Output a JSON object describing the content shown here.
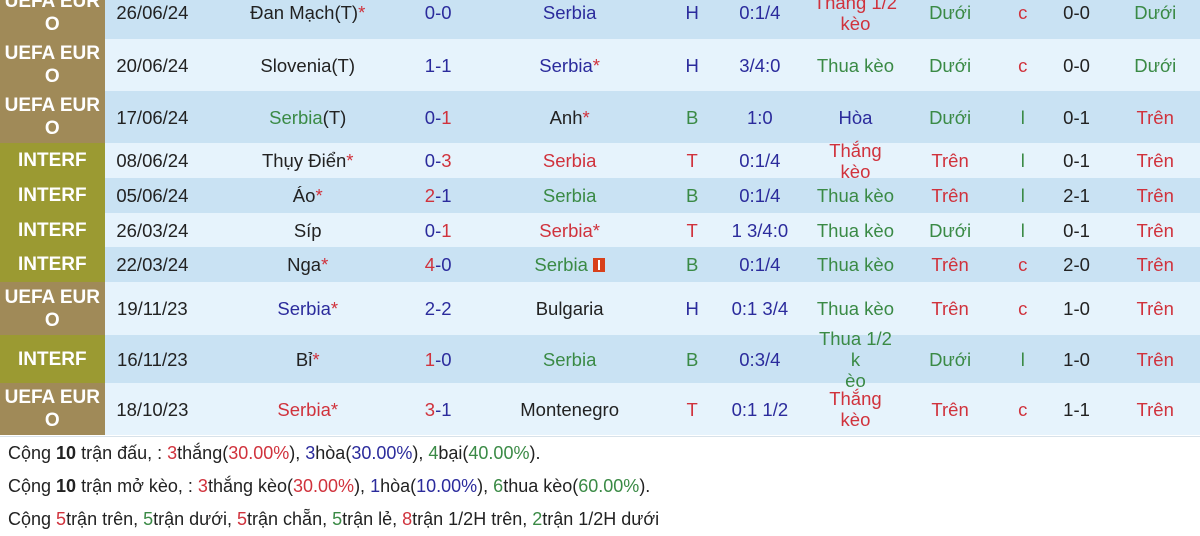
{
  "colors": {
    "dark": "#222222",
    "blue": "#2b2b9c",
    "green": "#3a8a45",
    "red": "#d0323c",
    "euro": "#a08a58",
    "interf": "#9b9a32"
  },
  "matches": [
    {
      "league": [
        "UEFA EUR",
        "O"
      ],
      "type": "euro",
      "date": "26/06/24",
      "home": "Đan Mạch(T)",
      "home_color": "dark",
      "home_star": "*",
      "score_h": "0",
      "score_h_color": "blue",
      "score_a": "0",
      "score_a_color": "blue",
      "away": "Serbia",
      "away_color": "blue",
      "away_star": "",
      "side": "H",
      "side_color": "blue",
      "hcp": "0:1/4",
      "result": [
        "Thắng 1/2",
        "kèo"
      ],
      "result_color": "red",
      "ou": "Dưới",
      "ou_color": "green",
      "cl": "c",
      "cl_color": "red",
      "ht": "0-0",
      "htou": "Dưới",
      "htou_color": "green"
    },
    {
      "league": [
        "UEFA EUR",
        "O"
      ],
      "type": "euro",
      "date": "20/06/24",
      "home": "Slovenia(T)",
      "home_color": "dark",
      "home_star": "",
      "score_h": "1",
      "score_h_color": "blue",
      "score_a": "1",
      "score_a_color": "blue",
      "away": "Serbia",
      "away_color": "blue",
      "away_star": "*",
      "side": "H",
      "side_color": "blue",
      "hcp": "3/4:0",
      "result": [
        "Thua kèo"
      ],
      "result_color": "green",
      "ou": "Dưới",
      "ou_color": "green",
      "cl": "c",
      "cl_color": "red",
      "ht": "0-0",
      "htou": "Dưới",
      "htou_color": "green"
    },
    {
      "league": [
        "UEFA EUR",
        "O"
      ],
      "type": "euro",
      "date": "17/06/24",
      "home": "Serbia",
      "home_suffix": "(T)",
      "home_color": "green",
      "home_star": "",
      "score_h": "0",
      "score_h_color": "blue",
      "score_a": "1",
      "score_a_color": "red",
      "away": "Anh",
      "away_color": "dark",
      "away_star": "*",
      "side": "B",
      "side_color": "green",
      "hcp": "1:0",
      "result": [
        "Hòa"
      ],
      "result_color": "blue",
      "ou": "Dưới",
      "ou_color": "green",
      "cl": "l",
      "cl_color": "green",
      "ht": "0-1",
      "htou": "Trên",
      "htou_color": "red"
    },
    {
      "league": [
        "INTERF"
      ],
      "type": "interf",
      "date": "08/06/24",
      "home": "Thụy Điển",
      "home_color": "dark",
      "home_star": "*",
      "score_h": "0",
      "score_h_color": "blue",
      "score_a": "3",
      "score_a_color": "red",
      "away": "Serbia",
      "away_color": "red",
      "away_star": "",
      "side": "T",
      "side_color": "red",
      "hcp": "0:1/4",
      "result": [
        "Thắng kèo"
      ],
      "result_color": "red",
      "ou": "Trên",
      "ou_color": "red",
      "cl": "l",
      "cl_color": "green",
      "ht": "0-1",
      "htou": "Trên",
      "htou_color": "red"
    },
    {
      "league": [
        "INTERF"
      ],
      "type": "interf",
      "date": "05/06/24",
      "home": "Áo",
      "home_color": "dark",
      "home_star": "*",
      "score_h": "2",
      "score_h_color": "red",
      "score_a": "1",
      "score_a_color": "blue",
      "away": "Serbia",
      "away_color": "green",
      "away_star": "",
      "side": "B",
      "side_color": "green",
      "hcp": "0:1/4",
      "result": [
        "Thua kèo"
      ],
      "result_color": "green",
      "ou": "Trên",
      "ou_color": "red",
      "cl": "l",
      "cl_color": "green",
      "ht": "2-1",
      "htou": "Trên",
      "htou_color": "red"
    },
    {
      "league": [
        "INTERF"
      ],
      "type": "interf",
      "date": "26/03/24",
      "home": "Síp",
      "home_color": "dark",
      "home_star": "",
      "score_h": "0",
      "score_h_color": "blue",
      "score_a": "1",
      "score_a_color": "red",
      "away": "Serbia",
      "away_color": "red",
      "away_star": "*",
      "side": "T",
      "side_color": "red",
      "hcp": "1 3/4:0",
      "result": [
        "Thua kèo"
      ],
      "result_color": "green",
      "ou": "Dưới",
      "ou_color": "green",
      "cl": "l",
      "cl_color": "green",
      "ht": "0-1",
      "htou": "Trên",
      "htou_color": "red"
    },
    {
      "league": [
        "INTERF"
      ],
      "type": "interf",
      "date": "22/03/24",
      "home": "Nga",
      "home_color": "dark",
      "home_star": "*",
      "score_h": "4",
      "score_h_color": "red",
      "score_a": "0",
      "score_a_color": "blue",
      "away": "Serbia",
      "away_color": "green",
      "away_star": "",
      "away_flag": "red-card-icon",
      "side": "B",
      "side_color": "green",
      "hcp": "0:1/4",
      "result": [
        "Thua kèo"
      ],
      "result_color": "green",
      "ou": "Trên",
      "ou_color": "red",
      "cl": "c",
      "cl_color": "red",
      "ht": "2-0",
      "htou": "Trên",
      "htou_color": "red"
    },
    {
      "league": [
        "UEFA EUR",
        "O"
      ],
      "type": "euro",
      "date": "19/11/23",
      "home": "Serbia",
      "home_color": "blue",
      "home_star": "*",
      "score_h": "2",
      "score_h_color": "blue",
      "score_a": "2",
      "score_a_color": "blue",
      "away": "Bulgaria",
      "away_color": "dark",
      "away_star": "",
      "side": "H",
      "side_color": "blue",
      "hcp": "0:1 3/4",
      "result": [
        "Thua kèo"
      ],
      "result_color": "green",
      "ou": "Trên",
      "ou_color": "red",
      "cl": "c",
      "cl_color": "red",
      "ht": "1-0",
      "htou": "Trên",
      "htou_color": "red"
    },
    {
      "league": [
        "INTERF"
      ],
      "type": "interf",
      "date": "16/11/23",
      "home": "Bỉ",
      "home_color": "dark",
      "home_star": "*",
      "score_h": "1",
      "score_h_color": "red",
      "score_a": "0",
      "score_a_color": "blue",
      "away": "Serbia",
      "away_color": "green",
      "away_star": "",
      "side": "B",
      "side_color": "green",
      "hcp": "0:3/4",
      "result": [
        "Thua 1/2 k",
        "èo"
      ],
      "result_color": "green",
      "ou": "Dưới",
      "ou_color": "green",
      "cl": "l",
      "cl_color": "green",
      "ht": "1-0",
      "htou": "Trên",
      "htou_color": "red"
    },
    {
      "league": [
        "UEFA EUR",
        "O"
      ],
      "type": "euro",
      "date": "18/10/23",
      "home": "Serbia",
      "home_color": "red",
      "home_star": "*",
      "score_h": "3",
      "score_h_color": "red",
      "score_a": "1",
      "score_a_color": "blue",
      "away": "Montenegro",
      "away_color": "dark",
      "away_star": "",
      "side": "T",
      "side_color": "red",
      "hcp": "0:1 1/2",
      "result": [
        "Thắng kèo"
      ],
      "result_color": "red",
      "ou": "Trên",
      "ou_color": "red",
      "cl": "c",
      "cl_color": "red",
      "ht": "1-1",
      "htou": "Trên",
      "htou_color": "red"
    }
  ],
  "summary": [
    [
      {
        "t": "Cộng "
      },
      {
        "t": "10",
        "b": true
      },
      {
        "t": " trận đấu, : "
      },
      {
        "t": "3",
        "c": "red"
      },
      {
        "t": "thắng("
      },
      {
        "t": "30.00%",
        "c": "red"
      },
      {
        "t": "), "
      },
      {
        "t": "3",
        "c": "blue"
      },
      {
        "t": "hòa("
      },
      {
        "t": "30.00%",
        "c": "blue"
      },
      {
        "t": "), "
      },
      {
        "t": "4",
        "c": "green"
      },
      {
        "t": "bại("
      },
      {
        "t": "40.00%",
        "c": "green"
      },
      {
        "t": ")."
      }
    ],
    [
      {
        "t": "Cộng "
      },
      {
        "t": "10",
        "b": true
      },
      {
        "t": " trận mở kèo, : "
      },
      {
        "t": "3",
        "c": "red"
      },
      {
        "t": "thắng kèo("
      },
      {
        "t": "30.00%",
        "c": "red"
      },
      {
        "t": "), "
      },
      {
        "t": "1",
        "c": "blue"
      },
      {
        "t": "hòa("
      },
      {
        "t": "10.00%",
        "c": "blue"
      },
      {
        "t": "), "
      },
      {
        "t": "6",
        "c": "green"
      },
      {
        "t": "thua kèo("
      },
      {
        "t": "60.00%",
        "c": "green"
      },
      {
        "t": ")."
      }
    ],
    [
      {
        "t": "Cộng "
      },
      {
        "t": "5",
        "c": "red"
      },
      {
        "t": "trận trên, "
      },
      {
        "t": "5",
        "c": "green"
      },
      {
        "t": "trận dưới, "
      },
      {
        "t": "5",
        "c": "red"
      },
      {
        "t": "trận chẵn, "
      },
      {
        "t": "5",
        "c": "green"
      },
      {
        "t": "trận lẻ, "
      },
      {
        "t": "8",
        "c": "red"
      },
      {
        "t": "trận 1/2H trên, "
      },
      {
        "t": "2",
        "c": "green"
      },
      {
        "t": "trận 1/2H dưới"
      }
    ]
  ]
}
